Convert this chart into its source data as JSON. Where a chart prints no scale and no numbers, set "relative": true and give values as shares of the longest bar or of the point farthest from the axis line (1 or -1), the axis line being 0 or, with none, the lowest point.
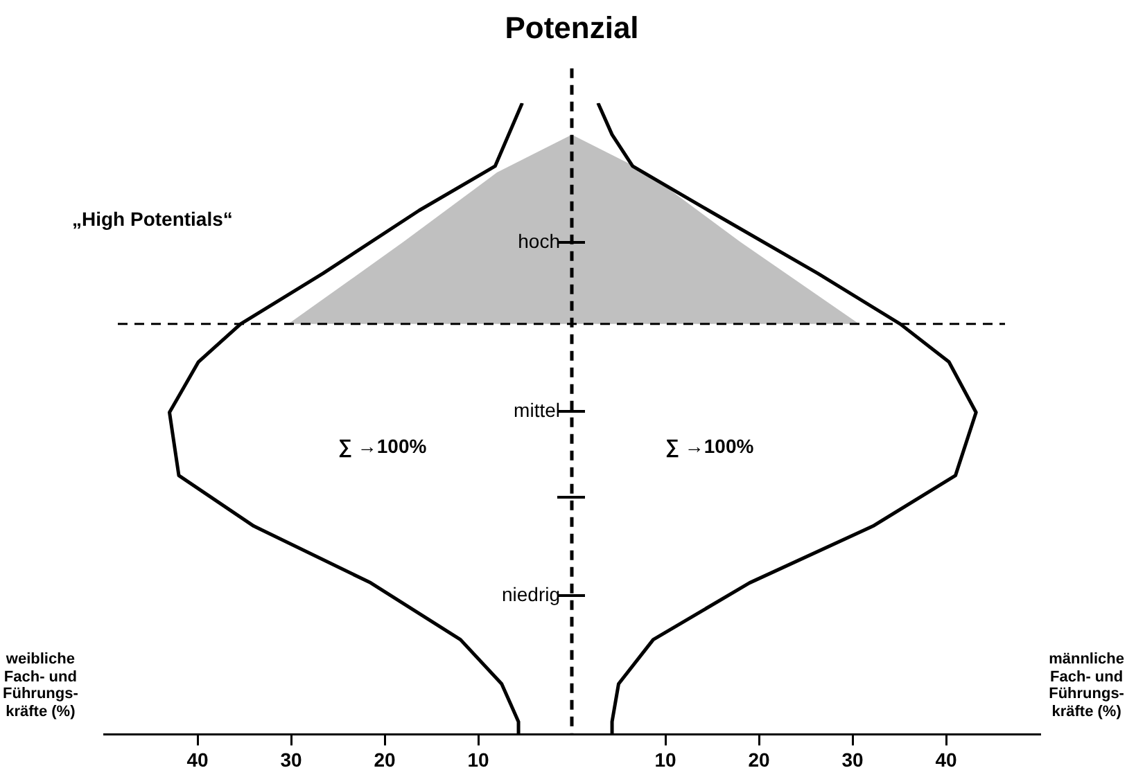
{
  "chart_data": {
    "type": "line",
    "title": "Potenzial",
    "relative": true,
    "series": [
      {
        "color": "#000000",
        "x": [
          -5.3,
          -8.2,
          -16.3,
          -26.6,
          -35.4,
          -39.9,
          -43,
          -42,
          -34,
          -21.5,
          -11.9,
          -7.5,
          -5.7,
          -5.7
        ],
        "values": [
          1,
          0.9,
          0.83,
          0.73,
          0.65,
          0.59,
          0.51,
          0.41,
          0.33,
          0.24,
          0.15,
          0.08,
          0.02,
          0
        ]
      },
      {
        "color": "#000000",
        "x": [
          2.8,
          4.3,
          6.5,
          14.6,
          26.3,
          35.1,
          40.3,
          43.2,
          41,
          32.2,
          19,
          8.7,
          5,
          4.3,
          4.3
        ],
        "values": [
          1,
          0.95,
          0.9,
          0.83,
          0.73,
          0.65,
          0.59,
          0.51,
          0.41,
          0.33,
          0.24,
          0.15,
          0.08,
          0.02,
          0
        ]
      },
      {
        "type": "area",
        "color": "#a0a0a0",
        "x": [
          -30.3,
          -18,
          -8,
          0,
          8,
          18,
          30.7
        ],
        "values": [
          0.65,
          0.78,
          0.89,
          0.95,
          0.89,
          0.78,
          0.65
        ]
      }
    ],
    "xlim": [
      -50,
      50
    ],
    "xticks": [
      {
        "value": -40,
        "label": "40"
      },
      {
        "value": -30,
        "label": "30"
      },
      {
        "value": -20,
        "label": "20"
      },
      {
        "value": -10,
        "label": "10"
      },
      10,
      20,
      30,
      40
    ],
    "ref_lines": [
      {
        "axis": "x",
        "value": 0,
        "line_style": "dashed"
      },
      {
        "axis": "y",
        "value": 0.65,
        "line_style": "dashed"
      }
    ],
    "annotations": [
      "„High Potentials“",
      "weibliche\nFach- und\nFührungs-\nkräfte (%)",
      "männliche\nFach- und\nFührungs-\nkräfte (%)",
      "∑ →100%",
      "∑ →100%",
      "hoch",
      "mittel",
      "niedrig"
    ],
    "grid": false,
    "legend": false
  }
}
